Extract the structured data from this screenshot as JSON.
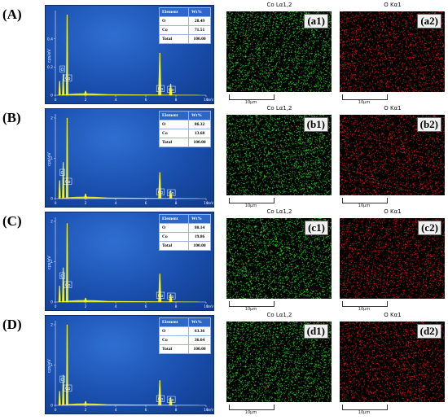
{
  "rows": [
    {
      "label": "(A)",
      "spectrum": {
        "y_axis_label": "cps/eV",
        "x_axis_label": "keV",
        "y_ticks": [
          "0.4",
          "0.2",
          "0"
        ],
        "y_tick_values": [
          0.4,
          0.2,
          0
        ],
        "y_max": 0.6,
        "x_ticks": [
          "0",
          "2",
          "4",
          "6",
          "8",
          "10"
        ],
        "peak_labels": [
          {
            "text": "O",
            "energy": 0.52
          },
          {
            "text": "Co",
            "energy": 0.78
          },
          {
            "text": "Co",
            "energy": 6.93
          },
          {
            "text": "Co",
            "energy": 7.65
          }
        ],
        "peaks": [
          {
            "energy": 0.28,
            "height": 0.1
          },
          {
            "energy": 0.52,
            "height": 0.15
          },
          {
            "energy": 0.78,
            "height": 0.57
          },
          {
            "energy": 2.0,
            "height": 0.03
          },
          {
            "energy": 6.93,
            "height": 0.3
          },
          {
            "energy": 7.65,
            "height": 0.08
          }
        ],
        "table": {
          "headers": [
            "Element",
            "Wt%"
          ],
          "rows": [
            [
              "O",
              "28.49"
            ],
            [
              "Co",
              "71.51"
            ],
            [
              "Total",
              "100.00"
            ]
          ]
        }
      },
      "maps": [
        {
          "title": "Co Lα1,2",
          "label": "(a1)",
          "scale": "10μm",
          "color": "#3be03b"
        },
        {
          "title": "O Kα1",
          "label": "(a2)",
          "scale": "10μm",
          "color": "#e82020"
        }
      ]
    },
    {
      "label": "(B)",
      "spectrum": {
        "y_axis_label": "cps/eV",
        "x_axis_label": "keV",
        "y_ticks": [
          "2",
          "1",
          "0"
        ],
        "y_tick_values": [
          2,
          1,
          0
        ],
        "y_max": 2.1,
        "x_ticks": [
          "0",
          "2",
          "4",
          "6",
          "8",
          "10"
        ],
        "peak_labels": [
          {
            "text": "O",
            "energy": 0.52
          },
          {
            "text": "Co",
            "energy": 0.78
          },
          {
            "text": "Co",
            "energy": 6.93
          },
          {
            "text": "Co",
            "energy": 7.65
          }
        ],
        "peaks": [
          {
            "energy": 0.28,
            "height": 0.45
          },
          {
            "energy": 0.52,
            "height": 0.9
          },
          {
            "energy": 0.78,
            "height": 2.0
          },
          {
            "energy": 2.0,
            "height": 0.12
          },
          {
            "energy": 6.93,
            "height": 0.65
          },
          {
            "energy": 7.65,
            "height": 0.2
          }
        ],
        "table": {
          "headers": [
            "Element",
            "Wt%"
          ],
          "rows": [
            [
              "O",
              "86.32"
            ],
            [
              "Co",
              "13.68"
            ],
            [
              "Total",
              "100.00"
            ]
          ]
        }
      },
      "maps": [
        {
          "title": "Co Lα1,2",
          "label": "(b1)",
          "scale": "10μm",
          "color": "#3be03b"
        },
        {
          "title": "O Kα1",
          "label": "(b2)",
          "scale": "10μm",
          "color": "#e82020"
        }
      ]
    },
    {
      "label": "(C)",
      "spectrum": {
        "y_axis_label": "cps/eV",
        "x_axis_label": "keV",
        "y_ticks": [
          "2",
          "1",
          "0"
        ],
        "y_tick_values": [
          2,
          1,
          0
        ],
        "y_max": 2.1,
        "x_ticks": [
          "0",
          "2",
          "4",
          "6",
          "8",
          "10"
        ],
        "peak_labels": [
          {
            "text": "O",
            "energy": 0.52
          },
          {
            "text": "Co",
            "energy": 0.78
          },
          {
            "text": "Co",
            "energy": 6.93
          },
          {
            "text": "Co",
            "energy": 7.65
          }
        ],
        "peaks": [
          {
            "energy": 0.28,
            "height": 0.4
          },
          {
            "energy": 0.52,
            "height": 0.85
          },
          {
            "energy": 0.78,
            "height": 1.95
          },
          {
            "energy": 2.0,
            "height": 0.1
          },
          {
            "energy": 6.93,
            "height": 0.7
          },
          {
            "energy": 7.65,
            "height": 0.2
          }
        ],
        "table": {
          "headers": [
            "Element",
            "Wt%"
          ],
          "rows": [
            [
              "O",
              "80.14"
            ],
            [
              "Co",
              "19.86"
            ],
            [
              "Total",
              "100.00"
            ]
          ]
        }
      },
      "maps": [
        {
          "title": "Co Lα1,2",
          "label": "(c1)",
          "scale": "10μm",
          "color": "#3be03b"
        },
        {
          "title": "O Kα1",
          "label": "(c2)",
          "scale": "10μm",
          "color": "#e82020"
        }
      ]
    },
    {
      "label": "(D)",
      "spectrum": {
        "y_axis_label": "cps/eV",
        "x_axis_label": "keV",
        "y_ticks": [
          "2",
          "1",
          "0"
        ],
        "y_tick_values": [
          2,
          1,
          0
        ],
        "y_max": 2.1,
        "x_ticks": [
          "0",
          "2",
          "4",
          "6",
          "8",
          "10"
        ],
        "peak_labels": [
          {
            "text": "O",
            "energy": 0.52
          },
          {
            "text": "Co",
            "energy": 0.78
          },
          {
            "text": "Co",
            "energy": 6.93
          },
          {
            "text": "Co",
            "energy": 7.65
          }
        ],
        "peaks": [
          {
            "energy": 0.28,
            "height": 0.35
          },
          {
            "energy": 0.52,
            "height": 0.75
          },
          {
            "energy": 0.78,
            "height": 2.0
          },
          {
            "energy": 2.0,
            "height": 0.1
          },
          {
            "energy": 6.93,
            "height": 0.62
          },
          {
            "energy": 7.65,
            "height": 0.2
          }
        ],
        "table": {
          "headers": [
            "Element",
            "Wt%"
          ],
          "rows": [
            [
              "O",
              "63.36"
            ],
            [
              "Co",
              "36.64"
            ],
            [
              "Total",
              "100.00"
            ]
          ]
        }
      },
      "maps": [
        {
          "title": "Co Lα1,2",
          "label": "(d1)",
          "scale": "10μm",
          "color": "#3be03b"
        },
        {
          "title": "O Kα1",
          "label": "(d2)",
          "scale": "10μm",
          "color": "#e82020"
        }
      ]
    }
  ],
  "chart_data": [
    {
      "type": "line",
      "panel": "A",
      "x_unit": "keV",
      "y_unit": "cps/eV",
      "xlim": [
        0,
        10
      ],
      "ylim": [
        0,
        0.6
      ],
      "series": [
        {
          "x": [
            0.28,
            0.52,
            0.78,
            2.0,
            6.93,
            7.65
          ],
          "y": [
            0.1,
            0.15,
            0.57,
            0.03,
            0.3,
            0.08
          ]
        }
      ],
      "table": {
        "O": 28.49,
        "Co": 71.51,
        "Total": 100.0
      }
    },
    {
      "type": "line",
      "panel": "B",
      "x_unit": "keV",
      "y_unit": "cps/eV",
      "xlim": [
        0,
        10
      ],
      "ylim": [
        0,
        2.1
      ],
      "series": [
        {
          "x": [
            0.28,
            0.52,
            0.78,
            2.0,
            6.93,
            7.65
          ],
          "y": [
            0.45,
            0.9,
            2.0,
            0.12,
            0.65,
            0.2
          ]
        }
      ],
      "table": {
        "O": 86.32,
        "Co": 13.68,
        "Total": 100.0
      }
    },
    {
      "type": "line",
      "panel": "C",
      "x_unit": "keV",
      "y_unit": "cps/eV",
      "xlim": [
        0,
        10
      ],
      "ylim": [
        0,
        2.1
      ],
      "series": [
        {
          "x": [
            0.28,
            0.52,
            0.78,
            2.0,
            6.93,
            7.65
          ],
          "y": [
            0.4,
            0.85,
            1.95,
            0.1,
            0.7,
            0.2
          ]
        }
      ],
      "table": {
        "O": 80.14,
        "Co": 19.86,
        "Total": 100.0
      }
    },
    {
      "type": "line",
      "panel": "D",
      "x_unit": "keV",
      "y_unit": "cps/eV",
      "xlim": [
        0,
        10
      ],
      "ylim": [
        0,
        2.1
      ],
      "series": [
        {
          "x": [
            0.28,
            0.52,
            0.78,
            2.0,
            6.93,
            7.65
          ],
          "y": [
            0.35,
            0.75,
            2.0,
            0.1,
            0.62,
            0.2
          ]
        }
      ],
      "table": {
        "O": 63.36,
        "Co": 36.64,
        "Total": 100.0
      }
    }
  ]
}
